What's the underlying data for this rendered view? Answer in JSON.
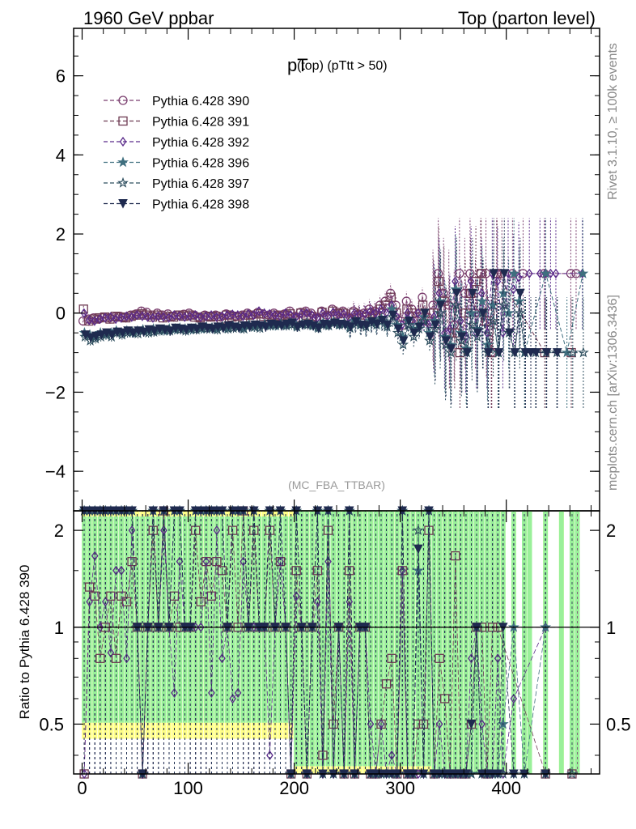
{
  "header": {
    "left": "1960 GeV ppbar",
    "right": "Top (parton level)"
  },
  "side_labels": {
    "rivet": "Rivet 3.1.10, ≥ 100k events",
    "mcplots": "mcplots.cern.ch [arXiv:1306.3436]"
  },
  "colors": {
    "c390": "#7b3f6f",
    "c391": "#6d3a52",
    "c392": "#5a2a8a",
    "c396": "#3f6f7f",
    "c397": "#2f4f5f",
    "c398": "#1f2a4f",
    "band_green": "#9af09a",
    "band_yellow": "#ffff88"
  },
  "chart_data": [
    {
      "type": "line",
      "title_main": "pT",
      "title_sub": "(top) (pTtt > 50)",
      "watermark": "(MC_FBA_TTBAR)",
      "xlim": [
        -8,
        488
      ],
      "ylim": [
        -5,
        7.2
      ],
      "yticks": [
        -4,
        -2,
        0,
        2,
        4,
        6
      ],
      "ytick_labels": [
        "−4",
        "−2",
        "0",
        "2",
        "4",
        "6"
      ],
      "x": [
        2,
        7,
        12,
        17,
        22,
        27,
        32,
        37,
        42,
        47,
        52,
        57,
        62,
        67,
        72,
        77,
        82,
        87,
        92,
        97,
        102,
        107,
        112,
        117,
        122,
        127,
        132,
        137,
        142,
        147,
        152,
        157,
        162,
        167,
        172,
        177,
        182,
        187,
        192,
        197,
        202,
        207,
        212,
        217,
        222,
        227,
        232,
        237,
        242,
        247,
        252,
        257,
        262,
        267,
        272,
        277,
        282,
        287,
        292,
        297,
        302,
        307,
        312,
        317,
        322,
        327,
        332,
        337,
        342,
        347,
        352,
        357,
        362,
        367,
        372,
        377,
        382,
        387,
        392,
        397,
        402,
        407,
        412,
        417,
        422,
        427,
        432,
        437,
        442,
        447,
        452,
        457,
        462,
        467,
        472,
        477
      ],
      "series": [
        {
          "name": "Pythia 6.428 390",
          "marker": "circle",
          "values": [
            -0.2,
            -0.15,
            -0.12,
            -0.15,
            -0.1,
            -0.12,
            -0.1,
            -0.08,
            -0.1,
            -0.05,
            -0.02,
            0.05,
            0.02,
            -0.05,
            0.0,
            -0.05,
            -0.02,
            -0.08,
            -0.05,
            -0.03,
            0.0,
            -0.05,
            -0.1,
            -0.05,
            -0.08,
            -0.05,
            -0.1,
            -0.02,
            -0.05,
            -0.08,
            -0.05,
            0.0,
            -0.05,
            0.02,
            -0.03,
            -0.05,
            0.0,
            -0.05,
            -0.02,
            0.05,
            -0.08,
            0.02,
            0.05,
            0.0,
            -0.1,
            0.05,
            -0.05,
            0.1,
            0.02,
            0.05,
            -0.1,
            0.05,
            -0.02,
            0.0,
            0.1,
            0.05,
            0.2,
            0.3,
            0.5,
            0.2,
            -0.2,
            0.3,
            0.1,
            -0.2,
            0.4,
            -0.1,
            0.2,
            1.0,
            0.5,
            0.2,
            -0.3,
            1.0,
            0.5,
            1.0,
            0.0,
            1.0,
            1.0,
            -1.0,
            1.0,
            1.0,
            null,
            1.0,
            null,
            1.0,
            null,
            null,
            null,
            1.0,
            null,
            null,
            null,
            null,
            1.0,
            1.0,
            null,
            null
          ]
        },
        {
          "name": "Pythia 6.428 391",
          "marker": "square",
          "values": [
            0.1,
            -0.2,
            -0.15,
            -0.12,
            -0.1,
            -0.15,
            -0.08,
            -0.1,
            -0.12,
            -0.08,
            -0.05,
            -0.02,
            -0.05,
            -0.1,
            -0.05,
            -0.12,
            -0.08,
            -0.1,
            -0.05,
            -0.08,
            -0.05,
            -0.1,
            -0.12,
            -0.08,
            -0.1,
            -0.08,
            -0.15,
            -0.05,
            -0.1,
            -0.08,
            -0.12,
            -0.05,
            -0.1,
            -0.02,
            -0.08,
            -0.1,
            -0.05,
            -0.08,
            -0.05,
            -0.02,
            -0.12,
            0.0,
            -0.05,
            -0.08,
            -0.15,
            0.02,
            -0.1,
            0.05,
            -0.02,
            0.0,
            -0.15,
            0.0,
            -0.05,
            -0.1,
            0.0,
            -0.05,
            0.1,
            0.2,
            0.4,
            0.0,
            -0.3,
            0.1,
            0.0,
            -0.1,
            0.2,
            -0.2,
            0.0,
            0.8,
            0.3,
            -0.5,
            -0.5,
            -1.0,
            0.0,
            0.5,
            0.8,
            1.0,
            -0.2,
            -1.0,
            1.0,
            null,
            null,
            null,
            null,
            null,
            null,
            null,
            null,
            -1.0,
            null,
            null,
            null,
            null,
            -1.0,
            null,
            null,
            null
          ]
        },
        {
          "name": "Pythia 6.428 392",
          "marker": "diamond",
          "values": [
            0.0,
            -0.18,
            -0.2,
            -0.15,
            -0.12,
            -0.1,
            -0.15,
            -0.12,
            -0.08,
            -0.1,
            -0.05,
            -0.08,
            -0.1,
            -0.12,
            -0.08,
            -0.1,
            -0.12,
            -0.05,
            -0.08,
            -0.1,
            -0.08,
            -0.05,
            -0.1,
            -0.08,
            -0.05,
            -0.1,
            -0.08,
            -0.05,
            -0.03,
            -0.05,
            -0.08,
            -0.02,
            -0.05,
            0.05,
            0.0,
            -0.02,
            -0.05,
            -0.08,
            0.0,
            -0.05,
            -0.1,
            -0.02,
            0.0,
            -0.05,
            -0.12,
            0.0,
            -0.08,
            0.02,
            -0.05,
            -0.02,
            -0.12,
            0.0,
            -0.05,
            -0.02,
            0.05,
            0.0,
            0.1,
            0.0,
            0.2,
            -0.1,
            -0.3,
            0.0,
            -0.2,
            0.0,
            -0.2,
            -0.3,
            -0.1,
            0.5,
            -0.5,
            -0.4,
            0.8,
            -0.2,
            -0.6,
            0.8,
            -0.5,
            0.5,
            -0.5,
            1.0,
            0.8,
            -0.5,
            1.0,
            0.6,
            0.9,
            null,
            1.0,
            null,
            1.0,
            1.0,
            1.0,
            1.0,
            null,
            null,
            null,
            null,
            1.0,
            null
          ]
        },
        {
          "name": "Pythia 6.428 396",
          "marker": "star",
          "values": [
            -0.5,
            -0.55,
            -0.6,
            -0.5,
            -0.55,
            -0.5,
            -0.45,
            -0.5,
            -0.45,
            -0.5,
            -0.45,
            -0.42,
            -0.45,
            -0.4,
            -0.42,
            -0.45,
            -0.4,
            -0.42,
            -0.38,
            -0.4,
            -0.42,
            -0.38,
            -0.4,
            -0.35,
            -0.38,
            -0.4,
            -0.35,
            -0.38,
            -0.32,
            -0.35,
            -0.38,
            -0.3,
            -0.35,
            -0.32,
            -0.28,
            -0.3,
            -0.32,
            -0.28,
            -0.3,
            -0.25,
            -0.32,
            -0.28,
            -0.25,
            -0.3,
            -0.35,
            -0.25,
            -0.3,
            -0.22,
            -0.28,
            -0.25,
            -0.35,
            -0.2,
            -0.28,
            -0.3,
            -0.2,
            -0.25,
            -0.15,
            -0.3,
            0.1,
            -0.3,
            -0.6,
            -0.2,
            -0.4,
            -0.3,
            -0.1,
            -0.5,
            -0.2,
            0.3,
            -0.6,
            -0.8,
            0.6,
            -0.5,
            -0.9,
            0.0,
            -0.4,
            0.3,
            -0.8,
            0.2,
            -1.0,
            0.5,
            0.0,
            1.0,
            0.3,
            -1.0,
            null,
            null,
            null,
            1.0,
            null,
            null,
            null,
            -1.0,
            null,
            null,
            1.0,
            null
          ]
        },
        {
          "name": "Pythia 6.428 397",
          "marker": "star-open",
          "values": [
            -0.6,
            -0.7,
            -0.65,
            -0.6,
            -0.55,
            -0.6,
            -0.5,
            -0.55,
            -0.5,
            -0.48,
            -0.52,
            -0.45,
            -0.5,
            -0.48,
            -0.45,
            -0.42,
            -0.45,
            -0.4,
            -0.42,
            -0.45,
            -0.4,
            -0.42,
            -0.38,
            -0.4,
            -0.38,
            -0.42,
            -0.35,
            -0.4,
            -0.38,
            -0.35,
            -0.4,
            -0.32,
            -0.35,
            -0.38,
            -0.3,
            -0.32,
            -0.3,
            -0.28,
            -0.32,
            -0.3,
            -0.35,
            -0.28,
            -0.3,
            -0.32,
            -0.38,
            -0.3,
            -0.32,
            -0.25,
            -0.3,
            -0.28,
            -0.38,
            -0.25,
            -0.3,
            -0.35,
            -0.25,
            -0.3,
            -0.2,
            -0.35,
            -0.1,
            -0.5,
            -0.8,
            -0.3,
            -0.6,
            -0.4,
            -0.2,
            -0.7,
            -0.4,
            0.0,
            -0.8,
            -1.0,
            0.2,
            -0.7,
            -1.0,
            -0.3,
            -0.6,
            0.0,
            -1.0,
            -0.2,
            -1.0,
            0.2,
            -0.5,
            -1.0,
            0.0,
            -1.0,
            null,
            -1.0,
            null,
            -1.0,
            null,
            -1.0,
            null,
            null,
            -1.0,
            null,
            -1.0,
            null
          ]
        },
        {
          "name": "Pythia 6.428 398",
          "marker": "triangle-down",
          "values": [
            -0.55,
            -0.62,
            -0.58,
            -0.55,
            -0.5,
            -0.55,
            -0.48,
            -0.5,
            -0.45,
            -0.5,
            -0.45,
            -0.48,
            -0.42,
            -0.45,
            -0.4,
            -0.42,
            -0.45,
            -0.38,
            -0.4,
            -0.42,
            -0.38,
            -0.4,
            -0.35,
            -0.38,
            -0.4,
            -0.35,
            -0.38,
            -0.32,
            -0.35,
            -0.38,
            -0.32,
            -0.35,
            -0.3,
            -0.32,
            -0.35,
            -0.28,
            -0.3,
            -0.32,
            -0.28,
            -0.25,
            -0.35,
            -0.3,
            -0.28,
            -0.32,
            -0.38,
            -0.28,
            -0.3,
            -0.25,
            -0.28,
            -0.3,
            -0.35,
            -0.22,
            -0.3,
            -0.32,
            -0.22,
            -0.28,
            -0.18,
            -0.3,
            -0.05,
            -0.4,
            -0.7,
            -0.2,
            -0.5,
            -0.35,
            0.0,
            -0.6,
            -0.3,
            0.2,
            -0.7,
            -0.9,
            0.5,
            -0.6,
            -1.0,
            0.5,
            -0.5,
            0.0,
            -1.0,
            1.0,
            -1.0,
            1.0,
            -0.5,
            -1.0,
            0.5,
            -1.0,
            -1.0,
            -1.0,
            null,
            -1.0,
            null,
            -1.0,
            null,
            null,
            null,
            null,
            null,
            null
          ]
        }
      ]
    },
    {
      "type": "line",
      "ylabel": "Ratio to Pythia 6.428 390",
      "xlim": [
        -8,
        488
      ],
      "ylim": [
        0.35,
        2.3
      ],
      "xticks": [
        0,
        100,
        200,
        300,
        400
      ],
      "xtick_labels": [
        "0",
        "100",
        "200",
        "300",
        "400"
      ],
      "yticks": [
        0.5,
        1,
        2
      ],
      "ytick_labels": [
        "0.5",
        "1",
        "2"
      ],
      "reference": 1
    }
  ]
}
